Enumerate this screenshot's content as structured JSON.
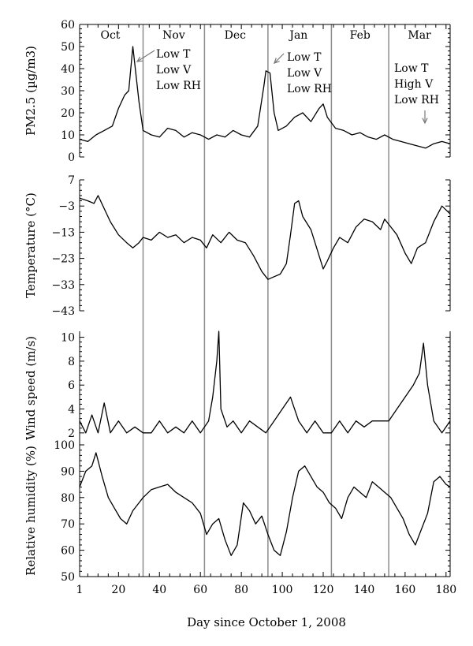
{
  "chart_data": {
    "type": "line",
    "xlabel": "Day since October 1, 2008",
    "xlim": [
      1,
      182
    ],
    "x_ticks": [
      "1",
      "20",
      "40",
      "60",
      "80",
      "100",
      "120",
      "140",
      "160",
      "180"
    ],
    "month_boundaries": [
      32,
      62,
      93,
      124,
      152
    ],
    "months": [
      {
        "label": "Oct",
        "center_day": 16
      },
      {
        "label": "Nov",
        "center_day": 47
      },
      {
        "label": "Dec",
        "center_day": 77
      },
      {
        "label": "Jan",
        "center_day": 108
      },
      {
        "label": "Feb",
        "center_day": 138
      },
      {
        "label": "Mar",
        "center_day": 167
      }
    ],
    "panels": [
      {
        "name": "pm25",
        "ylabel": "PM2.5 (µg/m3)",
        "ylim": [
          0,
          60
        ],
        "y_ticks": [
          "0",
          "10",
          "20",
          "30",
          "40",
          "50",
          "60"
        ],
        "series": [
          {
            "values": [
              [
                1,
                8
              ],
              [
                5,
                7
              ],
              [
                9,
                10
              ],
              [
                13,
                12
              ],
              [
                17,
                14
              ],
              [
                20,
                22
              ],
              [
                23,
                28
              ],
              [
                25,
                30
              ],
              [
                27,
                50
              ],
              [
                30,
                25
              ],
              [
                32,
                12
              ],
              [
                36,
                10
              ],
              [
                40,
                9
              ],
              [
                44,
                13
              ],
              [
                48,
                12
              ],
              [
                52,
                9
              ],
              [
                56,
                11
              ],
              [
                60,
                10
              ],
              [
                64,
                8
              ],
              [
                68,
                10
              ],
              [
                72,
                9
              ],
              [
                76,
                12
              ],
              [
                80,
                10
              ],
              [
                84,
                9
              ],
              [
                88,
                14
              ],
              [
                91,
                32
              ],
              [
                92,
                39
              ],
              [
                94,
                38
              ],
              [
                96,
                20
              ],
              [
                98,
                12
              ],
              [
                102,
                14
              ],
              [
                106,
                18
              ],
              [
                110,
                20
              ],
              [
                114,
                16
              ],
              [
                118,
                22
              ],
              [
                120,
                24
              ],
              [
                122,
                18
              ],
              [
                126,
                13
              ],
              [
                130,
                12
              ],
              [
                134,
                10
              ],
              [
                138,
                11
              ],
              [
                142,
                9
              ],
              [
                146,
                8
              ],
              [
                150,
                10
              ],
              [
                154,
                8
              ],
              [
                158,
                7
              ],
              [
                162,
                6
              ],
              [
                166,
                5
              ],
              [
                170,
                4
              ],
              [
                174,
                6
              ],
              [
                178,
                7
              ],
              [
                182,
                6
              ]
            ]
          }
        ],
        "annotations": [
          {
            "lines": [
              "Low T",
              "Low V",
              "Low RH"
            ],
            "day": 27
          },
          {
            "lines": [
              "Low T",
              "Low V",
              "Low RH"
            ],
            "day": 94
          },
          {
            "lines": [
              "Low T",
              "High V",
              "Low RH"
            ],
            "day": 170
          }
        ]
      },
      {
        "name": "temperature",
        "ylabel": "Temperature (°C)",
        "ylim": [
          -43,
          7
        ],
        "y_ticks": [
          "7",
          "−3",
          "−13",
          "−23",
          "−33",
          "−43"
        ],
        "series": [
          {
            "values": [
              [
                1,
                0
              ],
              [
                5,
                -1
              ],
              [
                8,
                -2
              ],
              [
                10,
                1
              ],
              [
                13,
                -4
              ],
              [
                16,
                -9
              ],
              [
                20,
                -14
              ],
              [
                24,
                -17
              ],
              [
                27,
                -19
              ],
              [
                30,
                -17
              ],
              [
                32,
                -15
              ],
              [
                36,
                -16
              ],
              [
                40,
                -13
              ],
              [
                44,
                -15
              ],
              [
                48,
                -14
              ],
              [
                52,
                -17
              ],
              [
                56,
                -15
              ],
              [
                60,
                -16
              ],
              [
                63,
                -19
              ],
              [
                66,
                -14
              ],
              [
                70,
                -17
              ],
              [
                74,
                -13
              ],
              [
                78,
                -16
              ],
              [
                82,
                -17
              ],
              [
                86,
                -22
              ],
              [
                90,
                -28
              ],
              [
                93,
                -31
              ],
              [
                96,
                -30
              ],
              [
                99,
                -29
              ],
              [
                102,
                -25
              ],
              [
                104,
                -14
              ],
              [
                106,
                -2
              ],
              [
                108,
                -1
              ],
              [
                110,
                -7
              ],
              [
                114,
                -12
              ],
              [
                118,
                -22
              ],
              [
                120,
                -27
              ],
              [
                122,
                -24
              ],
              [
                125,
                -19
              ],
              [
                128,
                -15
              ],
              [
                132,
                -17
              ],
              [
                136,
                -11
              ],
              [
                140,
                -8
              ],
              [
                144,
                -9
              ],
              [
                148,
                -12
              ],
              [
                150,
                -8
              ],
              [
                152,
                -10
              ],
              [
                156,
                -14
              ],
              [
                160,
                -21
              ],
              [
                163,
                -25
              ],
              [
                166,
                -19
              ],
              [
                170,
                -17
              ],
              [
                174,
                -9
              ],
              [
                178,
                -3
              ],
              [
                182,
                -6
              ]
            ]
          }
        ]
      },
      {
        "name": "wind",
        "ylabel": "Wind speed (m/s)",
        "ylim": [
          1,
          10.5
        ],
        "y_ticks": [
          "2",
          "4",
          "6",
          "8",
          "10"
        ],
        "series": [
          {
            "values": [
              [
                1,
                3
              ],
              [
                4,
                2
              ],
              [
                7,
                3.5
              ],
              [
                10,
                2
              ],
              [
                13,
                4.5
              ],
              [
                16,
                2
              ],
              [
                20,
                3
              ],
              [
                24,
                2
              ],
              [
                28,
                2.5
              ],
              [
                32,
                2
              ],
              [
                36,
                2
              ],
              [
                40,
                3
              ],
              [
                44,
                2
              ],
              [
                48,
                2.5
              ],
              [
                52,
                2
              ],
              [
                56,
                3
              ],
              [
                60,
                2
              ],
              [
                64,
                3
              ],
              [
                66,
                5
              ],
              [
                68,
                8
              ],
              [
                69,
                10.5
              ],
              [
                70,
                4
              ],
              [
                73,
                2.5
              ],
              [
                76,
                3
              ],
              [
                80,
                2
              ],
              [
                84,
                3
              ],
              [
                88,
                2.5
              ],
              [
                92,
                2
              ],
              [
                96,
                3
              ],
              [
                100,
                4
              ],
              [
                104,
                5
              ],
              [
                108,
                3
              ],
              [
                112,
                2
              ],
              [
                116,
                3
              ],
              [
                120,
                2
              ],
              [
                124,
                2
              ],
              [
                128,
                3
              ],
              [
                132,
                2
              ],
              [
                136,
                3
              ],
              [
                140,
                2.5
              ],
              [
                144,
                3
              ],
              [
                148,
                3
              ],
              [
                152,
                3
              ],
              [
                156,
                4
              ],
              [
                160,
                5
              ],
              [
                164,
                6
              ],
              [
                167,
                7
              ],
              [
                169,
                9.5
              ],
              [
                171,
                6
              ],
              [
                174,
                3
              ],
              [
                178,
                2
              ],
              [
                182,
                3
              ]
            ]
          }
        ]
      },
      {
        "name": "humidity",
        "ylabel": "Relative humidity (%)",
        "ylim": [
          50,
          100
        ],
        "y_ticks": [
          "50",
          "60",
          "70",
          "80",
          "90",
          "100"
        ],
        "series": [
          {
            "values": [
              [
                1,
                84
              ],
              [
                4,
                90
              ],
              [
                7,
                92
              ],
              [
                9,
                97
              ],
              [
                12,
                88
              ],
              [
                15,
                80
              ],
              [
                18,
                76
              ],
              [
                21,
                72
              ],
              [
                24,
                70
              ],
              [
                27,
                75
              ],
              [
                30,
                78
              ],
              [
                32,
                80
              ],
              [
                36,
                83
              ],
              [
                40,
                84
              ],
              [
                44,
                85
              ],
              [
                48,
                82
              ],
              [
                52,
                80
              ],
              [
                56,
                78
              ],
              [
                60,
                74
              ],
              [
                63,
                66
              ],
              [
                66,
                70
              ],
              [
                69,
                72
              ],
              [
                72,
                64
              ],
              [
                75,
                58
              ],
              [
                78,
                62
              ],
              [
                81,
                78
              ],
              [
                84,
                75
              ],
              [
                87,
                70
              ],
              [
                90,
                73
              ],
              [
                93,
                66
              ],
              [
                96,
                60
              ],
              [
                99,
                58
              ],
              [
                102,
                67
              ],
              [
                105,
                80
              ],
              [
                108,
                90
              ],
              [
                111,
                92
              ],
              [
                114,
                88
              ],
              [
                117,
                84
              ],
              [
                120,
                82
              ],
              [
                123,
                78
              ],
              [
                126,
                76
              ],
              [
                129,
                72
              ],
              [
                132,
                80
              ],
              [
                135,
                84
              ],
              [
                138,
                82
              ],
              [
                141,
                80
              ],
              [
                144,
                86
              ],
              [
                147,
                84
              ],
              [
                150,
                82
              ],
              [
                153,
                80
              ],
              [
                156,
                76
              ],
              [
                159,
                72
              ],
              [
                162,
                66
              ],
              [
                165,
                62
              ],
              [
                168,
                68
              ],
              [
                171,
                74
              ],
              [
                174,
                86
              ],
              [
                177,
                88
              ],
              [
                180,
                85
              ],
              [
                182,
                84
              ]
            ]
          }
        ]
      }
    ]
  }
}
